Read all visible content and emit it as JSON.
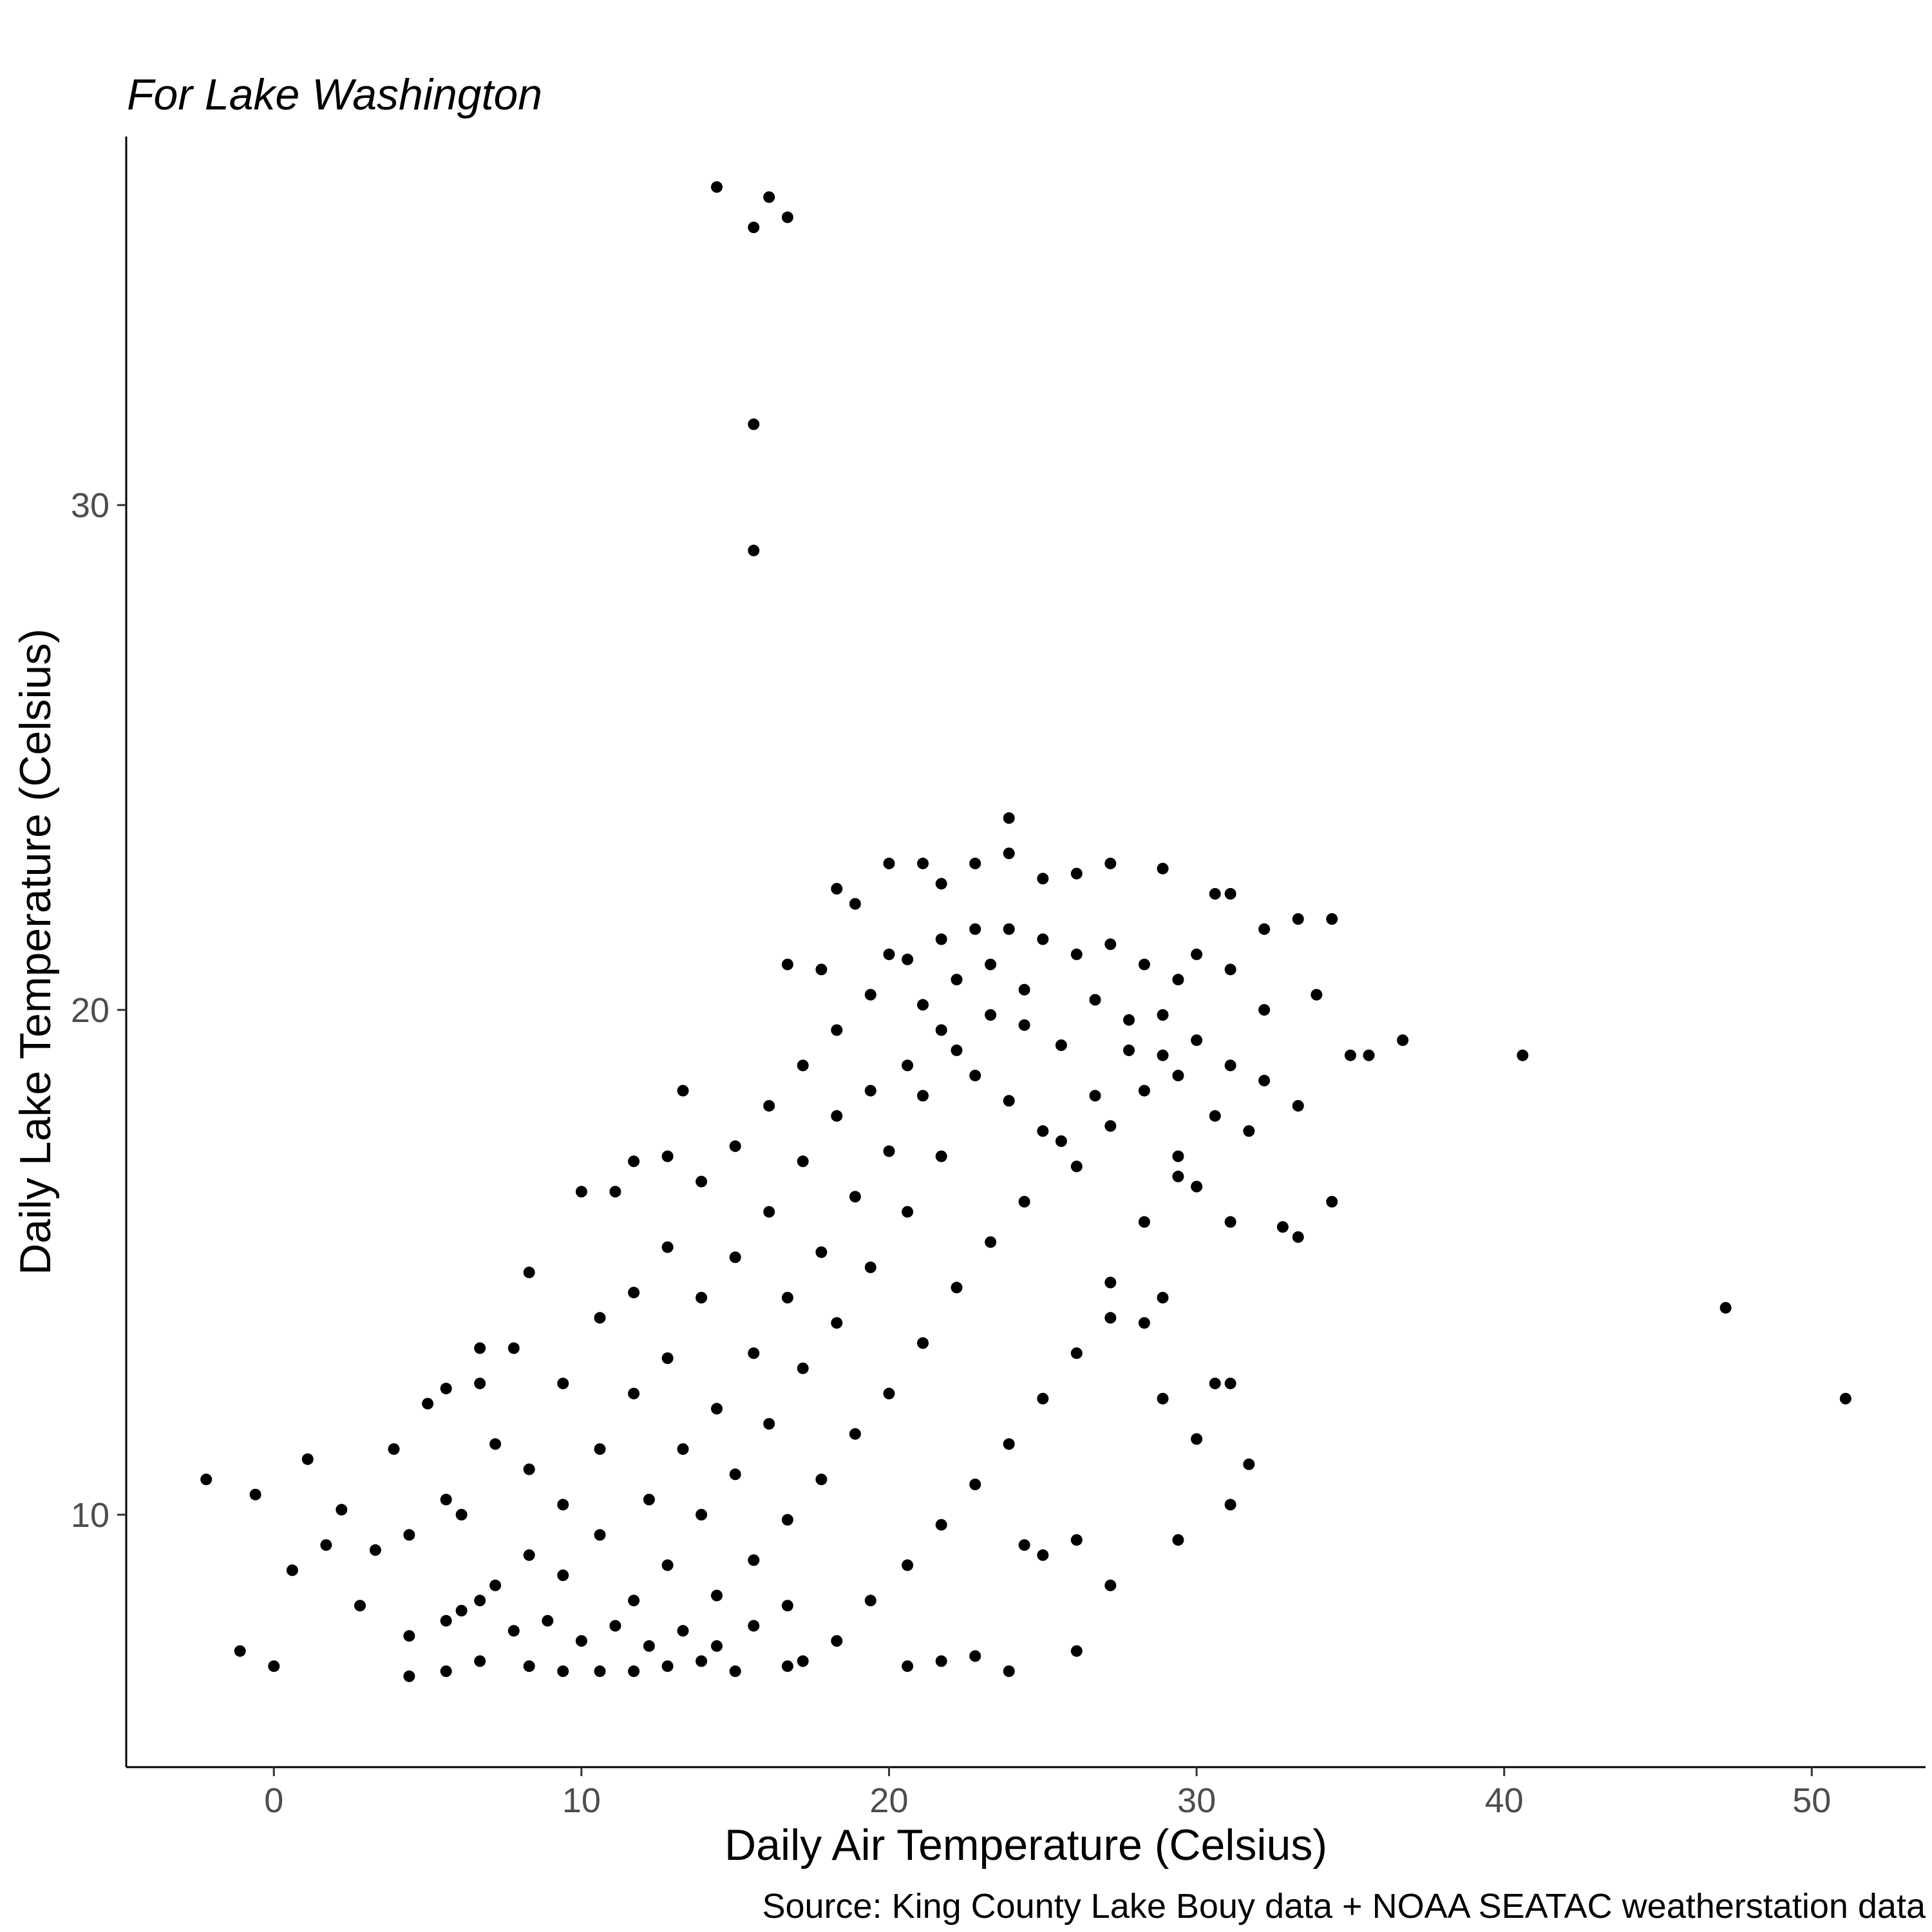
{
  "chart_data": {
    "type": "scatter",
    "title": "For Lake Washington",
    "xlabel": "Daily Air Temperature (Celsius)",
    "ylabel": "Daily Lake Temperature (Celsius)",
    "caption": "Source: King County Lake Bouy data + NOAA SEATAC weatherstation data",
    "xlim": [
      -4.8,
      53.7
    ],
    "ylim": [
      5.0,
      37.3
    ],
    "x_ticks": [
      0,
      10,
      20,
      30,
      40,
      50
    ],
    "y_ticks": [
      10,
      20,
      30
    ],
    "grid": false,
    "legend": "none",
    "point_color": "#000000",
    "points": [
      [
        14.4,
        36.3
      ],
      [
        16.1,
        36.1
      ],
      [
        15.6,
        35.5
      ],
      [
        16.7,
        35.7
      ],
      [
        15.6,
        31.6
      ],
      [
        15.6,
        29.1
      ],
      [
        23.9,
        23.8
      ],
      [
        23.9,
        23.1
      ],
      [
        20.0,
        22.9
      ],
      [
        21.1,
        22.9
      ],
      [
        22.8,
        22.9
      ],
      [
        27.2,
        22.9
      ],
      [
        28.9,
        22.8
      ],
      [
        26.1,
        22.7
      ],
      [
        18.3,
        22.4
      ],
      [
        21.7,
        22.5
      ],
      [
        25.0,
        22.6
      ],
      [
        30.6,
        22.3
      ],
      [
        31.1,
        22.3
      ],
      [
        18.9,
        22.1
      ],
      [
        33.3,
        21.8
      ],
      [
        34.4,
        21.8
      ],
      [
        32.2,
        21.6
      ],
      [
        30.0,
        21.1
      ],
      [
        16.7,
        20.9
      ],
      [
        17.8,
        20.8
      ],
      [
        20.0,
        21.1
      ],
      [
        31.1,
        20.8
      ],
      [
        33.9,
        20.3
      ],
      [
        32.2,
        20.0
      ],
      [
        36.7,
        19.4
      ],
      [
        35.0,
        19.1
      ],
      [
        35.6,
        19.1
      ],
      [
        40.6,
        19.1
      ],
      [
        47.2,
        14.1
      ],
      [
        51.1,
        12.3
      ],
      [
        -2.2,
        10.7
      ],
      [
        -0.6,
        10.4
      ],
      [
        1.1,
        11.1
      ],
      [
        2.2,
        10.1
      ],
      [
        -1.1,
        7.3
      ],
      [
        0.0,
        7.0
      ],
      [
        0.6,
        8.9
      ],
      [
        1.7,
        9.4
      ],
      [
        3.9,
        11.3
      ],
      [
        5.0,
        12.2
      ],
      [
        5.6,
        12.5
      ],
      [
        6.7,
        12.6
      ],
      [
        6.7,
        13.3
      ],
      [
        7.8,
        13.3
      ],
      [
        8.3,
        14.8
      ],
      [
        10.0,
        16.4
      ],
      [
        13.3,
        18.4
      ],
      [
        12.8,
        17.1
      ],
      [
        11.7,
        17.0
      ],
      [
        11.1,
        16.4
      ],
      [
        20.6,
        7.0
      ],
      [
        21.7,
        7.1
      ],
      [
        22.8,
        7.2
      ],
      [
        23.9,
        6.9
      ],
      [
        26.1,
        7.3
      ],
      [
        27.2,
        8.6
      ],
      [
        29.4,
        9.5
      ],
      [
        31.1,
        10.2
      ],
      [
        31.7,
        11.0
      ],
      [
        30.0,
        11.5
      ],
      [
        30.6,
        12.6
      ],
      [
        31.1,
        12.6
      ],
      [
        28.9,
        12.3
      ],
      [
        28.9,
        14.3
      ],
      [
        28.3,
        13.8
      ],
      [
        27.2,
        13.9
      ],
      [
        34.4,
        16.2
      ],
      [
        33.3,
        15.5
      ],
      [
        32.8,
        15.7
      ],
      [
        31.1,
        15.8
      ],
      [
        29.4,
        16.7
      ],
      [
        30.0,
        16.5
      ],
      [
        18.3,
        7.5
      ],
      [
        17.2,
        7.1
      ],
      [
        16.7,
        7.0
      ],
      [
        26.1,
        9.5
      ],
      [
        25.0,
        9.2
      ],
      [
        24.4,
        9.4
      ],
      [
        4.4,
        6.8
      ],
      [
        5.6,
        6.9
      ],
      [
        6.7,
        7.1
      ],
      [
        8.3,
        7.0
      ],
      [
        9.4,
        6.9
      ],
      [
        10.6,
        6.9
      ],
      [
        11.7,
        6.9
      ],
      [
        12.8,
        7.0
      ],
      [
        13.9,
        7.1
      ],
      [
        15.0,
        6.9
      ],
      [
        2.8,
        8.2
      ],
      [
        3.3,
        9.3
      ],
      [
        4.4,
        9.6
      ],
      [
        5.6,
        10.3
      ],
      [
        6.1,
        10.0
      ],
      [
        7.2,
        11.4
      ],
      [
        8.3,
        10.9
      ],
      [
        9.4,
        12.6
      ],
      [
        10.6,
        13.9
      ],
      [
        11.7,
        14.4
      ],
      [
        12.8,
        15.3
      ],
      [
        13.9,
        16.6
      ],
      [
        15.0,
        17.3
      ],
      [
        16.1,
        18.1
      ],
      [
        17.2,
        18.9
      ],
      [
        18.3,
        19.6
      ],
      [
        19.4,
        20.3
      ],
      [
        20.6,
        21.0
      ],
      [
        21.7,
        21.4
      ],
      [
        22.8,
        21.6
      ],
      [
        23.9,
        21.6
      ],
      [
        25.0,
        21.4
      ],
      [
        26.1,
        21.1
      ],
      [
        27.2,
        21.3
      ],
      [
        28.3,
        20.9
      ],
      [
        29.4,
        20.6
      ],
      [
        14.4,
        8.4
      ],
      [
        15.6,
        9.1
      ],
      [
        16.7,
        9.9
      ],
      [
        17.8,
        10.7
      ],
      [
        18.9,
        11.6
      ],
      [
        20.0,
        12.4
      ],
      [
        21.1,
        13.4
      ],
      [
        22.2,
        14.5
      ],
      [
        23.3,
        15.4
      ],
      [
        24.4,
        16.2
      ],
      [
        25.6,
        17.4
      ],
      [
        26.7,
        18.3
      ],
      [
        27.8,
        19.2
      ],
      [
        28.9,
        19.9
      ],
      [
        30.0,
        19.4
      ],
      [
        31.1,
        18.9
      ],
      [
        32.2,
        18.6
      ],
      [
        33.3,
        18.1
      ],
      [
        19.4,
        8.3
      ],
      [
        20.6,
        9.0
      ],
      [
        21.7,
        9.8
      ],
      [
        22.8,
        10.6
      ],
      [
        23.9,
        11.4
      ],
      [
        25.0,
        12.3
      ],
      [
        26.1,
        13.2
      ],
      [
        27.2,
        14.6
      ],
      [
        28.3,
        15.8
      ],
      [
        29.4,
        17.1
      ],
      [
        30.6,
        17.9
      ],
      [
        31.7,
        17.6
      ],
      [
        12.2,
        10.3
      ],
      [
        13.3,
        11.3
      ],
      [
        14.4,
        12.1
      ],
      [
        15.6,
        13.2
      ],
      [
        16.7,
        14.3
      ],
      [
        17.8,
        15.2
      ],
      [
        18.9,
        16.3
      ],
      [
        20.0,
        17.2
      ],
      [
        21.1,
        18.3
      ],
      [
        22.2,
        19.2
      ],
      [
        23.3,
        19.9
      ],
      [
        24.4,
        20.4
      ],
      [
        9.4,
        8.8
      ],
      [
        10.6,
        9.6
      ],
      [
        11.7,
        8.3
      ],
      [
        12.8,
        9.0
      ],
      [
        13.9,
        10.0
      ],
      [
        15.0,
        10.8
      ],
      [
        16.1,
        11.8
      ],
      [
        17.2,
        12.9
      ],
      [
        18.3,
        13.8
      ],
      [
        19.4,
        14.9
      ],
      [
        20.6,
        16.0
      ],
      [
        21.7,
        17.1
      ],
      [
        6.1,
        8.1
      ],
      [
        7.2,
        8.6
      ],
      [
        8.3,
        9.2
      ],
      [
        9.4,
        10.2
      ],
      [
        10.6,
        11.3
      ],
      [
        11.7,
        12.4
      ],
      [
        12.8,
        13.1
      ],
      [
        13.9,
        14.3
      ],
      [
        15.0,
        15.1
      ],
      [
        16.1,
        16.0
      ],
      [
        17.2,
        17.0
      ],
      [
        18.3,
        17.9
      ],
      [
        4.4,
        7.6
      ],
      [
        5.6,
        7.9
      ],
      [
        6.7,
        8.3
      ],
      [
        7.8,
        7.7
      ],
      [
        8.9,
        7.9
      ],
      [
        10.0,
        7.5
      ],
      [
        11.1,
        7.8
      ],
      [
        12.2,
        7.4
      ],
      [
        13.3,
        7.7
      ],
      [
        14.4,
        7.4
      ],
      [
        15.6,
        7.8
      ],
      [
        16.7,
        8.2
      ],
      [
        21.1,
        20.1
      ],
      [
        22.2,
        20.6
      ],
      [
        23.3,
        20.9
      ],
      [
        24.4,
        19.7
      ],
      [
        25.6,
        19.3
      ],
      [
        26.7,
        20.2
      ],
      [
        27.8,
        19.8
      ],
      [
        28.9,
        19.1
      ],
      [
        19.4,
        18.4
      ],
      [
        20.6,
        18.9
      ],
      [
        21.7,
        19.6
      ],
      [
        22.8,
        18.7
      ],
      [
        23.9,
        18.2
      ],
      [
        25.0,
        17.6
      ],
      [
        26.1,
        16.9
      ],
      [
        27.2,
        17.7
      ],
      [
        28.3,
        18.4
      ],
      [
        29.4,
        18.7
      ]
    ]
  }
}
